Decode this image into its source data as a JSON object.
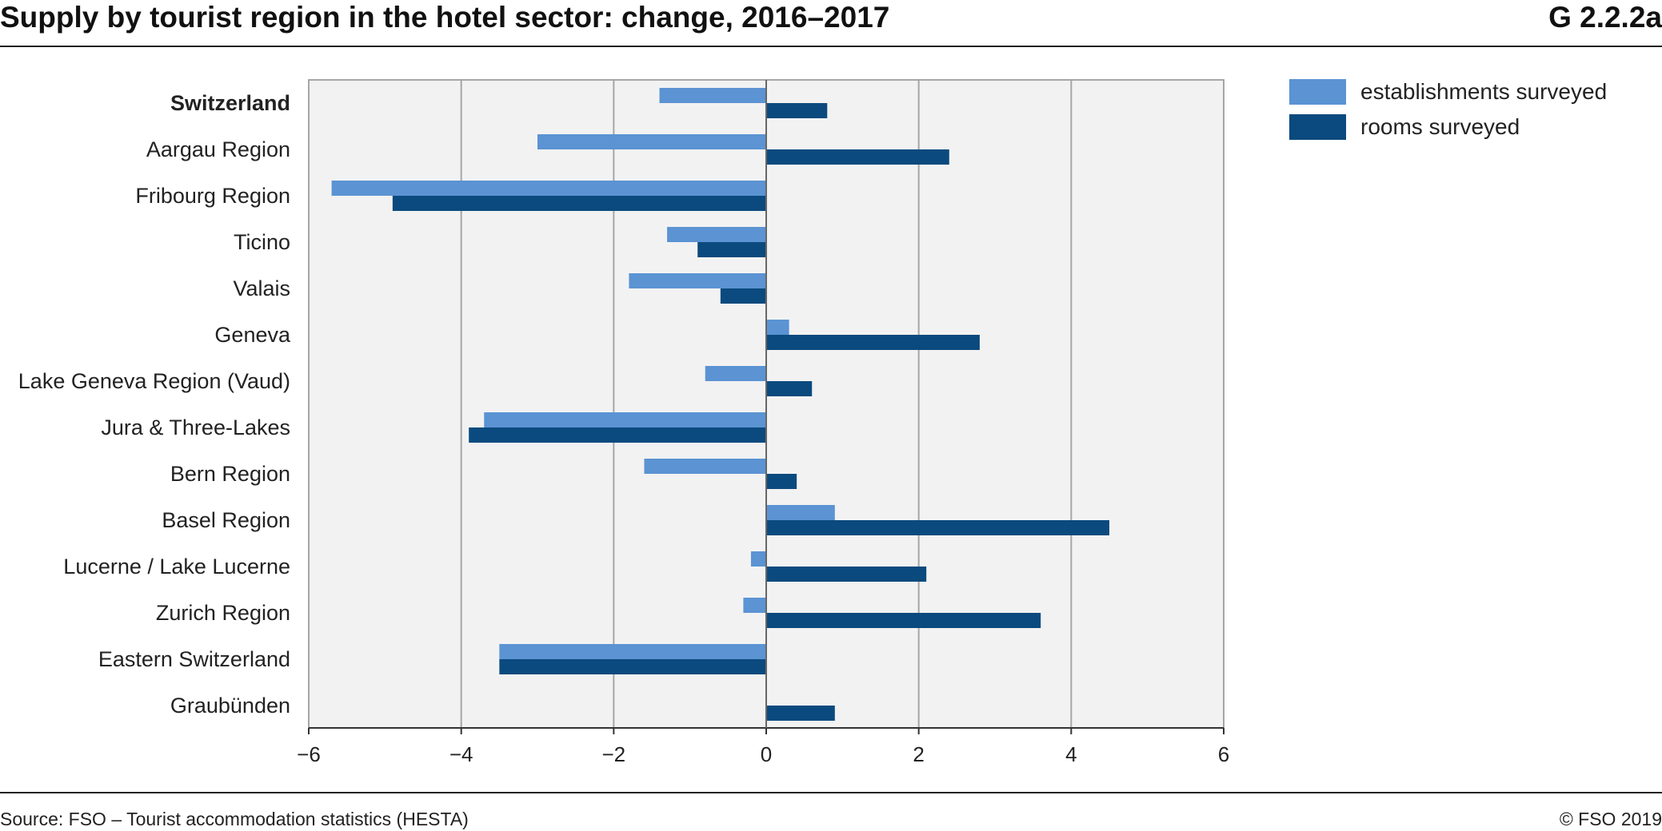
{
  "header": {
    "title": "Supply by tourist region in the hotel sector: change, 2016–2017",
    "figure_id": "G 2.2.2a"
  },
  "footer": {
    "source": "Source: FSO – Tourist accommodation statistics (HESTA)",
    "copyright": "© FSO 2019"
  },
  "colors": {
    "establishments": "#5b93d3",
    "rooms": "#0b4a7e",
    "plot_background": "#f2f2f2",
    "gridline": "#a6a6a6"
  },
  "chart_data": {
    "type": "bar",
    "orientation": "horizontal",
    "categories": [
      "Switzerland",
      "Aargau Region",
      "Fribourg Region",
      "Ticino",
      "Valais",
      "Geneva",
      "Lake Geneva Region (Vaud)",
      "Jura & Three-Lakes",
      "Bern Region",
      "Basel Region",
      "Lucerne / Lake Lucerne",
      "Zurich Region",
      "Eastern Switzerland",
      "Graubünden"
    ],
    "bold_categories": [
      "Switzerland"
    ],
    "series": [
      {
        "name": "establishments surveyed",
        "color": "#5b93d3",
        "values": [
          -1.4,
          -3.0,
          -5.7,
          -1.3,
          -1.8,
          0.3,
          -0.8,
          -3.7,
          -1.6,
          0.9,
          -0.2,
          -0.3,
          -3.5,
          0.0
        ]
      },
      {
        "name": "rooms surveyed",
        "color": "#0b4a7e",
        "values": [
          0.8,
          2.4,
          -4.9,
          -0.9,
          -0.6,
          2.8,
          0.6,
          -3.9,
          0.4,
          4.5,
          2.1,
          3.6,
          -3.5,
          0.9
        ]
      }
    ],
    "xlim": [
      -6,
      6
    ],
    "xticks": [
      -6,
      -4,
      -2,
      0,
      2,
      4,
      6
    ],
    "xtick_labels": [
      "−6",
      "−4",
      "−2",
      "0",
      "2",
      "4",
      "6"
    ],
    "xlabel": "",
    "ylabel": "",
    "grid": "vertical",
    "legend_position": "top-right, outside plot"
  }
}
